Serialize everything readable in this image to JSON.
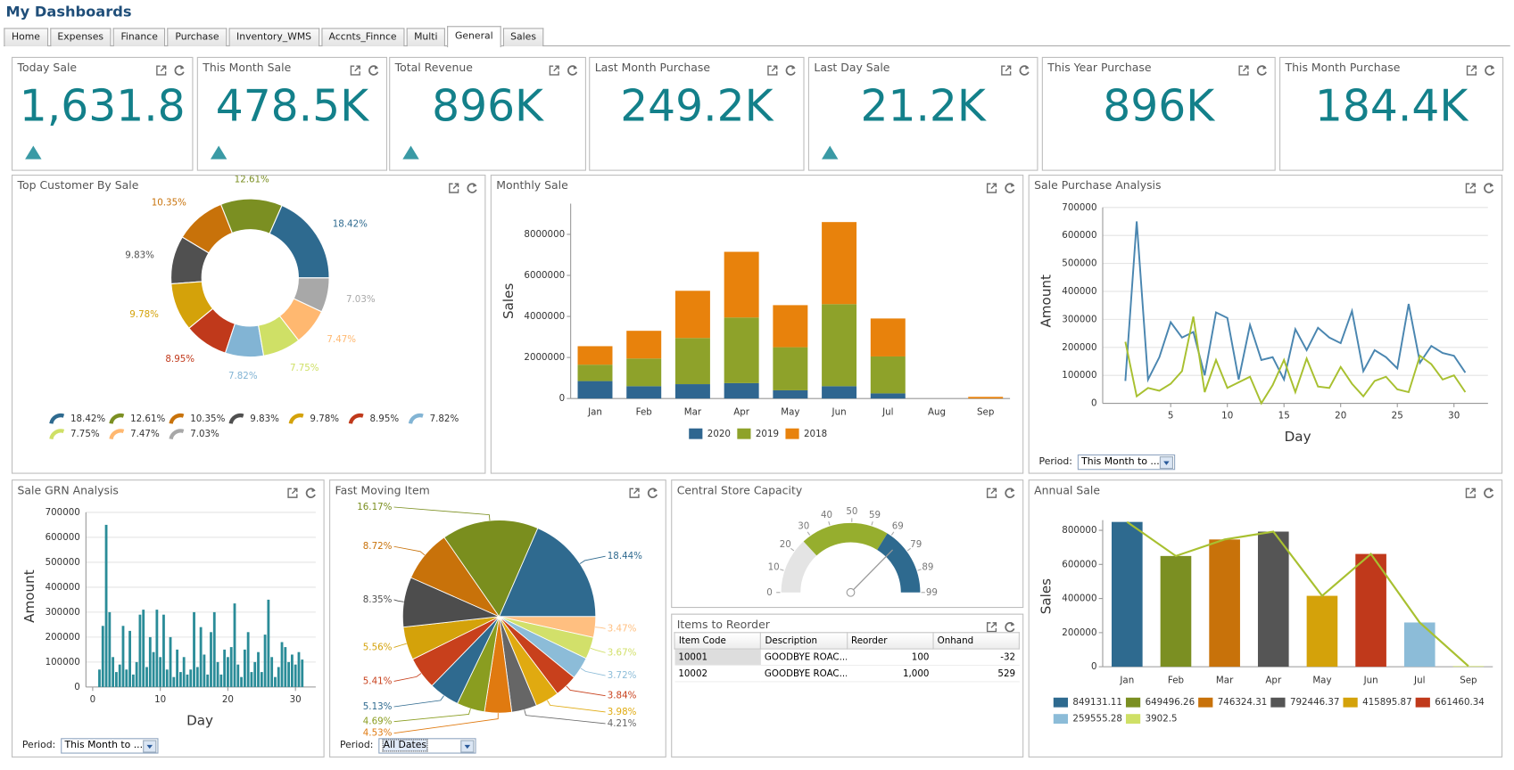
{
  "title": "My Dashboards",
  "tabs": [
    "Home",
    "Expenses",
    "Finance",
    "Purchase",
    "Inventory_WMS",
    "Accnts_Finnce",
    "Multi",
    "General",
    "Sales"
  ],
  "active_tab": 7,
  "kpis": [
    {
      "title": "Today Sale",
      "value": "1,631.8",
      "trend": "up"
    },
    {
      "title": "This Month Sale",
      "value": "478.5K",
      "trend": "up"
    },
    {
      "title": "Total Revenue",
      "value": "896K",
      "trend": "up"
    },
    {
      "title": "Last Month Purchase",
      "value": "249.2K"
    },
    {
      "title": "Last Day Sale",
      "value": "21.2K",
      "trend": "up"
    },
    {
      "title": "This Year Purchase",
      "value": "896K"
    },
    {
      "title": "This Month Purchase",
      "value": "184.4K"
    }
  ],
  "chart_data": [
    {
      "type": "donut",
      "title": "Top Customer By Sale",
      "values": [
        18.42,
        12.61,
        10.35,
        9.83,
        9.78,
        8.95,
        7.82,
        7.75,
        7.47,
        7.03
      ],
      "value_labels": [
        "18.42%",
        "12.61%",
        "10.35%",
        "9.83%",
        "9.78%",
        "8.95%",
        "7.82%",
        "7.75%",
        "7.47%",
        "7.03%"
      ],
      "colors": [
        "#2e6a8f",
        "#7b8f22",
        "#c8720a",
        "#505050",
        "#d4a20a",
        "#c0391b",
        "#82b4d4",
        "#cfe066",
        "#ffb870",
        "#a8a8a8"
      ]
    },
    {
      "type": "stacked_bar",
      "title": "Monthly Sale",
      "y_label": "Sales",
      "categories": [
        "Jan",
        "Feb",
        "Mar",
        "Apr",
        "May",
        "Jun",
        "Jul",
        "Aug",
        "Sep"
      ],
      "series": [
        {
          "name": "2020",
          "color": "#2f6690",
          "values": [
            850000,
            600000,
            700000,
            750000,
            400000,
            600000,
            250000,
            0,
            0
          ]
        },
        {
          "name": "2019",
          "color": "#8ea22a",
          "values": [
            800000,
            1350000,
            2250000,
            3200000,
            2100000,
            4000000,
            1800000,
            0,
            0
          ]
        },
        {
          "name": "2018",
          "color": "#e8820c",
          "values": [
            900000,
            1350000,
            2300000,
            3200000,
            2050000,
            4000000,
            1850000,
            0,
            80000
          ]
        }
      ],
      "ylim": [
        0,
        9500000
      ],
      "yticks": [
        0,
        2000000,
        4000000,
        6000000,
        8000000
      ],
      "grid": false,
      "legend": "bottom"
    },
    {
      "type": "line",
      "title": "Sale Purchase Analysis",
      "x_label": "Day",
      "y_label": "Amount",
      "x": [
        1,
        2,
        3,
        4,
        5,
        6,
        7,
        8,
        9,
        10,
        11,
        12,
        13,
        14,
        15,
        16,
        17,
        18,
        19,
        20,
        21,
        22,
        23,
        24,
        25,
        26,
        27,
        28,
        29,
        30,
        31
      ],
      "series": [
        {
          "color": "#4a86b0",
          "values": [
            80000,
            650000,
            85000,
            165000,
            290000,
            235000,
            255000,
            100000,
            325000,
            305000,
            85000,
            280000,
            155000,
            165000,
            85000,
            265000,
            190000,
            270000,
            235000,
            215000,
            330000,
            115000,
            190000,
            165000,
            125000,
            355000,
            145000,
            205000,
            180000,
            170000,
            110000
          ]
        },
        {
          "color": "#a8c030",
          "values": [
            220000,
            25000,
            55000,
            45000,
            70000,
            115000,
            310000,
            40000,
            155000,
            55000,
            75000,
            95000,
            0,
            65000,
            155000,
            40000,
            160000,
            60000,
            55000,
            130000,
            70000,
            25000,
            80000,
            95000,
            50000,
            40000,
            170000,
            140000,
            85000,
            100000,
            40000
          ]
        }
      ],
      "xlim": [
        -1,
        33
      ],
      "xticks": [
        5,
        10,
        15,
        20,
        25,
        30
      ],
      "ylim": [
        0,
        700000
      ],
      "yticks": [
        0,
        100000,
        200000,
        300000,
        400000,
        500000,
        600000,
        700000
      ],
      "grid": true,
      "period": {
        "label": "Period:",
        "value": "This Month to ..."
      }
    },
    {
      "type": "bar",
      "title": "Sale GRN Analysis",
      "x_label": "Day",
      "y_label": "Amount",
      "x": [
        1,
        1.5,
        2,
        2.5,
        3,
        3.5,
        4,
        4.5,
        5,
        5.5,
        6,
        6.5,
        7,
        7.5,
        8,
        8.5,
        9,
        9.5,
        10,
        10.5,
        11,
        11.5,
        12,
        12.5,
        13,
        13.5,
        14,
        14.5,
        15,
        15.5,
        16,
        16.5,
        17,
        17.5,
        18,
        18.5,
        19,
        19.5,
        20,
        20.5,
        21,
        21.5,
        22,
        22.5,
        23,
        23.5,
        24,
        24.5,
        25,
        25.5,
        26,
        26.5,
        27,
        27.5,
        28,
        28.5,
        29,
        29.5,
        30,
        30.5,
        31
      ],
      "values": [
        70000,
        245000,
        650000,
        300000,
        120000,
        60000,
        90000,
        245000,
        70000,
        225000,
        50000,
        100000,
        290000,
        310000,
        80000,
        200000,
        140000,
        310000,
        120000,
        290000,
        70000,
        200000,
        40000,
        150000,
        60000,
        120000,
        50000,
        70000,
        300000,
        80000,
        240000,
        130000,
        50000,
        220000,
        300000,
        100000,
        50000,
        150000,
        120000,
        160000,
        335000,
        90000,
        40000,
        150000,
        220000,
        60000,
        100000,
        140000,
        60000,
        210000,
        350000,
        120000,
        40000,
        80000,
        180000,
        160000,
        100000,
        130000,
        90000,
        140000,
        110000
      ],
      "color": "#2a8c98",
      "xlim": [
        -1,
        33
      ],
      "xticks": [
        0,
        10,
        20,
        30
      ],
      "ylim": [
        0,
        700000
      ],
      "yticks": [
        0,
        100000,
        200000,
        300000,
        400000,
        500000,
        600000,
        700000
      ],
      "grid": true,
      "period": {
        "label": "Period:",
        "value": "This Month to ..."
      }
    },
    {
      "type": "pie",
      "title": "Fast Moving Item",
      "values": [
        18.44,
        3.47,
        3.67,
        3.72,
        3.84,
        3.98,
        4.21,
        4.53,
        4.69,
        5.13,
        5.41,
        5.56,
        8.35,
        8.72,
        16.17
      ],
      "value_labels": [
        "18.44%",
        "3.47%",
        "3.67%",
        "3.72%",
        "3.84%",
        "3.98%",
        "4.21%",
        "4.53%",
        "4.69%",
        "5.13%",
        "5.41%",
        "5.56%",
        "8.35%",
        "8.72%",
        "16.17%"
      ],
      "colors": [
        "#2f6a8f",
        "#ffbf80",
        "#d2e06a",
        "#8cbcd8",
        "#c8401c",
        "#e0aa10",
        "#666666",
        "#e07a10",
        "#8a9d20",
        "#2f6a8f",
        "#c8401c",
        "#d4a20a",
        "#4d4d4d",
        "#c8720a",
        "#7a8e1e"
      ],
      "period": {
        "label": "Period:",
        "value": "All Dates"
      }
    },
    {
      "type": "gauge",
      "title": "Central Store Capacity",
      "value": 74,
      "ylim": [
        0,
        99
      ],
      "yticks": [
        0,
        10,
        20,
        30,
        40,
        50,
        59,
        69,
        79,
        89,
        99
      ],
      "bands": [
        {
          "from": 0,
          "to": 26,
          "color": "#e4e4e4"
        },
        {
          "from": 26,
          "to": 67,
          "color": "#96ae2e"
        },
        {
          "from": 67,
          "to": 99,
          "color": "#2e6a8f"
        }
      ]
    },
    {
      "type": "bar_line",
      "title": "Annual Sale",
      "y_label": "Sales",
      "categories": [
        "Jan",
        "Feb",
        "Mar",
        "Apr",
        "May",
        "Jun",
        "Jul",
        "Sep"
      ],
      "values": [
        849131.11,
        649496.26,
        746324.31,
        792446.37,
        415895.87,
        661460.34,
        259555.28,
        3902.5
      ],
      "colors": [
        "#2e6a8f",
        "#7b8f22",
        "#c8720a",
        "#555555",
        "#d4a20a",
        "#c0391b",
        "#8cbcd8",
        "#cfe066"
      ],
      "line_color": "#a8c030",
      "ylim": [
        0,
        860000
      ],
      "yticks": [
        0,
        200000,
        400000,
        600000,
        800000
      ],
      "grid": false,
      "legend": "bottom"
    }
  ],
  "reorder": {
    "title": "Items to Reorder",
    "columns": [
      "Item Code",
      "Description",
      "Reorder",
      "Onhand"
    ],
    "rows": [
      [
        "10001",
        "GOODBYE ROAC...",
        "100",
        "-32"
      ],
      [
        "10002",
        "GOODBYE ROAC...",
        "1,000",
        "529"
      ]
    ]
  }
}
